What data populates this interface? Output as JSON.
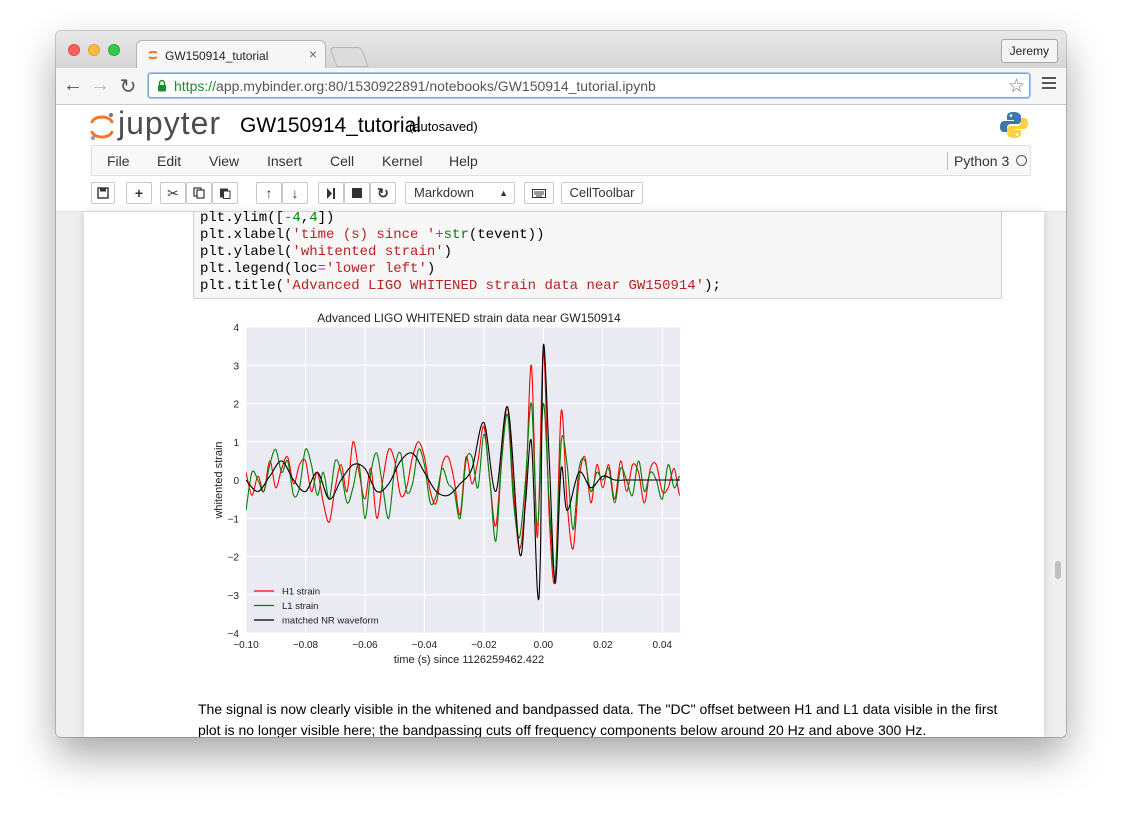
{
  "browser": {
    "tab_title": "GW150914_tutorial",
    "profile": "Jeremy",
    "url_scheme": "https://",
    "url_rest": "app.mybinder.org:80/1530922891/notebooks/GW150914_tutorial.ipynb"
  },
  "jupyter": {
    "logo_text": "jupyter",
    "notebook_name": "GW150914_tutorial",
    "autosave": "(autosaved)",
    "menus": [
      "File",
      "Edit",
      "View",
      "Insert",
      "Cell",
      "Kernel",
      "Help"
    ],
    "kernel_name": "Python 3",
    "cell_type": "Markdown",
    "celltoolbar": "CellToolbar"
  },
  "code_lines": [
    "plt.ylim([-4,4])",
    "plt.xlabel('time (s) since '+str(tevent))",
    "plt.ylabel('whitented strain')",
    "plt.legend(loc='lower left')",
    "plt.title('Advanced LIGO WHITENED strain data near GW150914');"
  ],
  "markdown_text": "The signal is now clearly visible in the whitened and bandpassed data. The \"DC\" offset between H1 and L1 data visible in the first plot is no longer visible here; the bandpassing cuts off frequency components below around 20 Hz and above 300 Hz.",
  "chart_data": {
    "type": "line",
    "title": "Advanced LIGO WHITENED strain data near GW150914",
    "xlabel": "time (s) since 1126259462.422",
    "ylabel": "whitented strain",
    "xlim": [
      -0.1,
      0.05
    ],
    "ylim": [
      -4,
      4
    ],
    "xticks": [
      "−0.10",
      "−0.08",
      "−0.06",
      "−0.04",
      "−0.02",
      "0.00",
      "0.02",
      "0.04"
    ],
    "yticks": [
      "4",
      "3",
      "2",
      "1",
      "0",
      "−1",
      "−2",
      "−3",
      "−4"
    ],
    "grid": true,
    "legend": "lower left",
    "series": [
      {
        "name": "H1 strain",
        "color": "#ff0000",
        "x": [
          -0.1,
          -0.098,
          -0.096,
          -0.094,
          -0.092,
          -0.09,
          -0.088,
          -0.086,
          -0.084,
          -0.082,
          -0.08,
          -0.078,
          -0.076,
          -0.074,
          -0.072,
          -0.07,
          -0.068,
          -0.066,
          -0.064,
          -0.062,
          -0.06,
          -0.058,
          -0.056,
          -0.054,
          -0.052,
          -0.05,
          -0.048,
          -0.046,
          -0.044,
          -0.042,
          -0.04,
          -0.038,
          -0.036,
          -0.034,
          -0.032,
          -0.03,
          -0.028,
          -0.026,
          -0.024,
          -0.022,
          -0.02,
          -0.018,
          -0.016,
          -0.014,
          -0.012,
          -0.01,
          -0.008,
          -0.006,
          -0.004,
          -0.002,
          0.0,
          0.002,
          0.004,
          0.006,
          0.008,
          0.01,
          0.012,
          0.014,
          0.016,
          0.018,
          0.02,
          0.022,
          0.024,
          0.026,
          0.028,
          0.03,
          0.032,
          0.034,
          0.036,
          0.038,
          0.04,
          0.042,
          0.044,
          0.046,
          0.048,
          0.05
        ],
        "y": [
          0.2,
          -0.4,
          0.1,
          -0.3,
          0.5,
          -0.2,
          0.3,
          0.6,
          -0.1,
          0.4,
          0.5,
          -0.3,
          0.2,
          -0.6,
          -1.1,
          -0.2,
          0.4,
          -0.3,
          1.0,
          0.2,
          -0.5,
          0.3,
          -1.0,
          0.0,
          0.8,
          0.5,
          -0.4,
          -0.2,
          0.6,
          1.0,
          0.6,
          -0.3,
          -0.6,
          0.4,
          0.6,
          0.0,
          -0.9,
          0.6,
          -0.1,
          0.5,
          1.4,
          0.0,
          -1.2,
          0.6,
          1.9,
          -0.3,
          -1.8,
          -0.4,
          3.0,
          -1.5,
          3.4,
          -1.0,
          -2.6,
          1.8,
          -0.6,
          -1.8,
          0.0,
          0.6,
          -0.6,
          0.4,
          -0.2,
          0.4,
          -0.5,
          0.5,
          -0.3,
          0.4,
          0.2,
          -0.6,
          0.3,
          0.4,
          -0.3,
          -0.2,
          0.3,
          -0.4,
          0.2,
          0.4
        ]
      },
      {
        "name": "L1 strain",
        "color": "#008000",
        "x": [
          -0.1,
          -0.098,
          -0.096,
          -0.094,
          -0.092,
          -0.09,
          -0.088,
          -0.086,
          -0.084,
          -0.082,
          -0.08,
          -0.078,
          -0.076,
          -0.074,
          -0.072,
          -0.07,
          -0.068,
          -0.066,
          -0.064,
          -0.062,
          -0.06,
          -0.058,
          -0.056,
          -0.054,
          -0.052,
          -0.05,
          -0.048,
          -0.046,
          -0.044,
          -0.042,
          -0.04,
          -0.038,
          -0.036,
          -0.034,
          -0.032,
          -0.03,
          -0.028,
          -0.026,
          -0.024,
          -0.022,
          -0.02,
          -0.018,
          -0.016,
          -0.014,
          -0.012,
          -0.01,
          -0.008,
          -0.006,
          -0.004,
          -0.002,
          0.0,
          0.002,
          0.004,
          0.006,
          0.008,
          0.01,
          0.012,
          0.014,
          0.016,
          0.018,
          0.02,
          0.022,
          0.024,
          0.026,
          0.028,
          0.03,
          0.032,
          0.034,
          0.036,
          0.038,
          0.04,
          0.042,
          0.044,
          0.046,
          0.048,
          0.05
        ],
        "y": [
          -0.8,
          0.2,
          0.0,
          -0.3,
          0.4,
          0.8,
          0.2,
          0.5,
          -0.4,
          -0.2,
          0.8,
          0.4,
          -0.4,
          0.2,
          -0.5,
          0.5,
          0.2,
          -0.6,
          -0.2,
          0.4,
          -1.0,
          0.2,
          0.7,
          -0.2,
          -1.0,
          0.3,
          0.7,
          -0.3,
          -0.1,
          0.8,
          0.4,
          -0.6,
          -0.4,
          0.3,
          -0.1,
          -0.3,
          -1.0,
          0.5,
          0.6,
          -0.2,
          1.2,
          0.0,
          -1.6,
          0.5,
          1.7,
          -0.6,
          -1.5,
          0.0,
          2.0,
          -1.2,
          2.0,
          -0.6,
          -2.5,
          1.0,
          0.4,
          -1.3,
          0.3,
          0.5,
          -0.3,
          0.2,
          0.0,
          0.3,
          -0.6,
          0.3,
          0.0,
          -0.4,
          0.5,
          -0.3,
          0.2,
          0.0,
          -0.5,
          0.4,
          -0.2,
          0.1,
          -0.3,
          0.2
        ]
      },
      {
        "name": "matched NR waveform",
        "color": "#000000",
        "x": [
          -0.1,
          -0.096,
          -0.092,
          -0.088,
          -0.084,
          -0.08,
          -0.076,
          -0.072,
          -0.068,
          -0.064,
          -0.06,
          -0.056,
          -0.052,
          -0.048,
          -0.044,
          -0.04,
          -0.036,
          -0.032,
          -0.028,
          -0.024,
          -0.02,
          -0.016,
          -0.012,
          -0.008,
          -0.006,
          -0.004,
          -0.002,
          -0.001,
          0.0,
          0.002,
          0.004,
          0.006,
          0.008,
          0.012,
          0.016,
          0.02,
          0.024,
          0.028,
          0.032,
          0.036,
          0.04,
          0.044,
          0.048,
          0.05
        ],
        "y": [
          0.0,
          -0.3,
          0.1,
          0.5,
          0.0,
          -0.3,
          0.2,
          -0.5,
          0.0,
          0.4,
          0.3,
          -0.3,
          -0.1,
          0.5,
          0.7,
          0.2,
          -0.3,
          -0.4,
          -0.1,
          0.3,
          1.5,
          -0.3,
          1.9,
          -1.9,
          -0.6,
          1.0,
          -2.9,
          -2.0,
          3.5,
          0.5,
          -2.7,
          0.3,
          -0.8,
          0.2,
          -0.2,
          0.1,
          0.0,
          0.0,
          0.0,
          0.0,
          0.0,
          0.0,
          0.0,
          0.0
        ]
      }
    ]
  }
}
